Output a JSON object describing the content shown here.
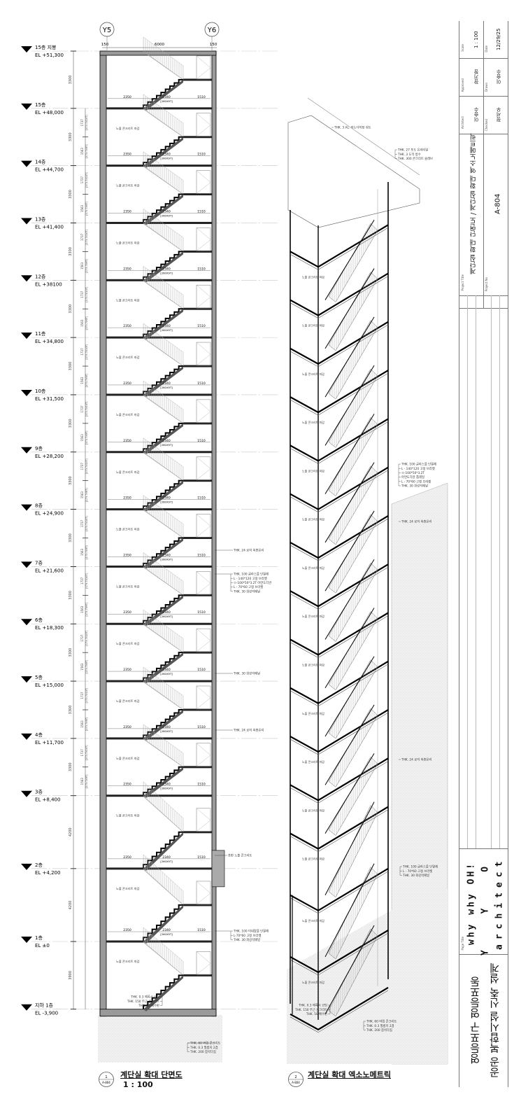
{
  "section": {
    "grid_labels": [
      "Y5",
      "Y6"
    ],
    "top_dims": [
      "150",
      "6000",
      "150"
    ],
    "levels": [
      {
        "name": "15층 지붕",
        "el": "EL +51,300",
        "elevation": 51300
      },
      {
        "name": "15층",
        "el": "EL +48,000",
        "elevation": 48000
      },
      {
        "name": "14층",
        "el": "EL +44,700",
        "elevation": 44700
      },
      {
        "name": "13층",
        "el": "EL +41,400",
        "elevation": 41400
      },
      {
        "name": "12층",
        "el": "EL +38100",
        "elevation": 38100
      },
      {
        "name": "11층",
        "el": "EL +34,800",
        "elevation": 34800
      },
      {
        "name": "10층",
        "el": "EL +31,500",
        "elevation": 31500
      },
      {
        "name": "9층",
        "el": "EL +28,200",
        "elevation": 28200
      },
      {
        "name": "8층",
        "el": "EL +24,900",
        "elevation": 24900
      },
      {
        "name": "7층",
        "el": "EL +21,600",
        "elevation": 21600
      },
      {
        "name": "6층",
        "el": "EL +18,300",
        "elevation": 18300
      },
      {
        "name": "5층",
        "el": "EL +15,000",
        "elevation": 15000
      },
      {
        "name": "4층",
        "el": "EL +11,700",
        "elevation": 11700
      },
      {
        "name": "3층",
        "el": "EL +8,400",
        "elevation": 8400
      },
      {
        "name": "2층",
        "el": "EL +4,200",
        "elevation": 4200
      },
      {
        "name": "1층",
        "el": "EL ±0",
        "elevation": 0
      },
      {
        "name": "지하 1층",
        "el": "EL -3,900",
        "elevation": -3900
      }
    ],
    "floor_heights": [
      "3300",
      "3300",
      "3300",
      "3300",
      "3300",
      "3300",
      "3300",
      "3300",
      "3300",
      "3300",
      "3300",
      "3300",
      "3300",
      "4200",
      "4200",
      "3900"
    ],
    "riser_dims": {
      "upper": "1737",
      "upper_note": "[173.7X10T]",
      "lower": "1563",
      "lower_note": "[173.7X9T]"
    },
    "stair_dims": {
      "landing_left": "2350",
      "run": "2340",
      "run_note": "[260X9T]",
      "landing_right": "1510"
    },
    "finish_label": "노출 콘크리트 마감",
    "annotations": [
      [
        "THK. 24 로이 복층유리"
      ],
      [
        "THK. 100 글라스울 단열재",
        "L - 140*120 고정 브라켓",
        "ㅁ-100*50*3.2T 아연도각관",
        "L - 70*60 고정 브라켓",
        "THK. 30 화강석패널"
      ],
      [
        "THK. 30 화강석패널"
      ],
      [
        "THK. 24 로이 복층유리"
      ],
      [
        "송판 노출 콘크리트"
      ],
      [
        "THK. 100 미네랄울 단열재",
        "L-70*60 고정 브라켓",
        "THK. 30 화강석패널"
      ],
      [
        "THK. 0.3 에폭시 코팅",
        "THK. 150 무근 콘크리트",
        "THK. 50 배수판"
      ],
      [
        "THK. 60 버림 콘크리트",
        "THK. 0.3 필름지 2겹",
        "THK. 200 잡석다짐"
      ]
    ],
    "title": "계단실 확대 단면도",
    "scale": "1 : 100",
    "ref_number": "1",
    "ref_sheet": "A-804"
  },
  "isometric": {
    "annotations": [
      [
        "THK. 3 AL. 아노다이징 쉬트"
      ],
      [
        "THK. 27 포도 유리타일",
        "THK. 3 도막 방수",
        "THK. 300 콘크리트 슬래브"
      ],
      [
        "THK. 100 글라스울 단열재",
        "L - 140*120 고정 브라켓",
        "ㅁ-100*50*3.2T",
        "아연도각관 톱레일",
        "L - 70*60 고정 브라켓",
        "THK. 30 화강석패널"
      ],
      [
        "THK. 24 로이 복층유리"
      ],
      [
        "THK. 24 로이 복층유리"
      ],
      [
        "THK. 100 글라스울 단열재",
        "L - 70*60 고정 브라켓",
        "THK. 30 화강석패널"
      ],
      [
        "THK. 0.3 에폭시 코팅",
        "THK. 150 무근 콘크리트",
        "THK. 50 배수판"
      ],
      [
        "THK. 60 버림 콘크리트",
        "THK. 0.3 필름지 2겹",
        "THK. 200 잡석다짐"
      ]
    ],
    "finish_label": "노출 콘크리트 마감",
    "title": "계단실 확대 엑소노메트릭",
    "ref_number": "2",
    "ref_sheet": "A-804"
  },
  "title_block": {
    "scale_label": "Scale",
    "scale": "1 : 100",
    "date_label": "Date",
    "date": "12/29/25",
    "approved_label": "Approved",
    "approved": "장기창",
    "drawn_label": "Drawn",
    "drawn": "이승수",
    "architect_label": "Architect",
    "architect": "이승수",
    "checked_label": "Checked",
    "checked": "정서우",
    "project_title_label": "Project Title",
    "project_title": "계단실 확대 단면도 / 계단실 확대 엑소노메트릭",
    "project_no_label": "Project No",
    "project_no": "A-804",
    "page_title_label": "Page Title",
    "logo_line1": "why why OH!",
    "logo_line2": "Y Y O",
    "logo_line3": "architect",
    "project_name_line1": "영등포구 영등포동",
    "project_name_line2": "공공 복합시설 신축 설계"
  }
}
